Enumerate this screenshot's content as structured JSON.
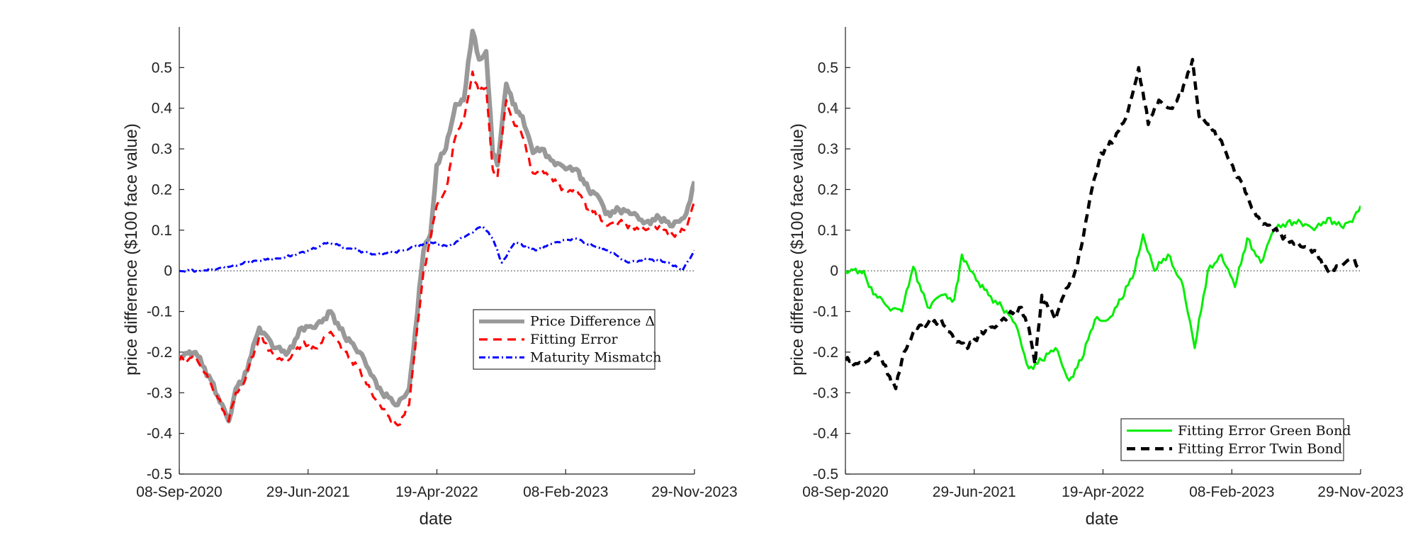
{
  "chart_data": [
    {
      "type": "line",
      "title": "",
      "xlabel": "date",
      "ylabel": "price difference ($100 face value)",
      "x_ticks": [
        "08-Sep-2020",
        "29-Jun-2021",
        "19-Apr-2022",
        "08-Feb-2023",
        "29-Nov-2023"
      ],
      "y_ticks": [
        "-0.5",
        "-0.4",
        "-0.3",
        "-0.2",
        "-0.1",
        "0",
        "0.1",
        "0.2",
        "0.3",
        "0.4",
        "0.5"
      ],
      "xlim": [
        "2020-09-08",
        "2023-11-29"
      ],
      "ylim": [
        -0.5,
        0.6
      ],
      "grid": false,
      "zero_line": true,
      "legend": "center-right",
      "series": [
        {
          "name": "Price Difference Δ",
          "color": "#999999",
          "style": "solid-thick",
          "x": [
            "2020-09-08",
            "2020-10-15",
            "2020-11-20",
            "2020-12-30",
            "2021-01-15",
            "2021-02-01",
            "2021-03-10",
            "2021-04-15",
            "2021-05-15",
            "2021-06-15",
            "2021-07-15",
            "2021-08-20",
            "2021-09-20",
            "2021-10-25",
            "2021-11-25",
            "2021-12-15",
            "2022-01-20",
            "2022-02-15",
            "2022-03-01",
            "2022-03-20",
            "2022-04-05",
            "2022-04-19",
            "2022-05-10",
            "2022-06-01",
            "2022-06-20",
            "2022-07-10",
            "2022-07-25",
            "2022-08-10",
            "2022-08-25",
            "2022-09-05",
            "2022-09-25",
            "2022-10-10",
            "2022-11-01",
            "2022-11-25",
            "2022-12-15",
            "2023-01-10",
            "2023-02-08",
            "2023-03-05",
            "2023-04-01",
            "2023-04-25",
            "2023-05-10",
            "2023-06-10",
            "2023-07-10",
            "2023-08-10",
            "2023-09-10",
            "2023-10-10",
            "2023-11-10",
            "2023-11-29"
          ],
          "values": [
            -0.21,
            -0.2,
            -0.27,
            -0.37,
            -0.29,
            -0.27,
            -0.14,
            -0.19,
            -0.2,
            -0.14,
            -0.14,
            -0.1,
            -0.16,
            -0.2,
            -0.26,
            -0.3,
            -0.33,
            -0.29,
            -0.15,
            0.05,
            0.09,
            0.26,
            0.3,
            0.41,
            0.42,
            0.59,
            0.52,
            0.54,
            0.29,
            0.26,
            0.46,
            0.41,
            0.38,
            0.29,
            0.3,
            0.27,
            0.25,
            0.25,
            0.2,
            0.18,
            0.14,
            0.15,
            0.14,
            0.12,
            0.13,
            0.11,
            0.14,
            0.22
          ]
        },
        {
          "name": "Fitting Error",
          "color": "#ff0000",
          "style": "dashed",
          "x": [
            "2020-09-08",
            "2020-10-15",
            "2020-11-20",
            "2020-12-30",
            "2021-01-15",
            "2021-02-01",
            "2021-03-10",
            "2021-04-15",
            "2021-05-15",
            "2021-06-15",
            "2021-07-15",
            "2021-08-20",
            "2021-09-20",
            "2021-10-25",
            "2021-11-25",
            "2021-12-15",
            "2022-01-20",
            "2022-02-15",
            "2022-03-01",
            "2022-03-20",
            "2022-04-05",
            "2022-04-19",
            "2022-05-10",
            "2022-06-01",
            "2022-06-20",
            "2022-07-10",
            "2022-07-25",
            "2022-08-10",
            "2022-08-25",
            "2022-09-05",
            "2022-09-25",
            "2022-10-10",
            "2022-11-01",
            "2022-11-25",
            "2022-12-15",
            "2023-01-10",
            "2023-02-08",
            "2023-03-05",
            "2023-04-01",
            "2023-04-25",
            "2023-05-10",
            "2023-06-10",
            "2023-07-10",
            "2023-08-10",
            "2023-09-10",
            "2023-10-10",
            "2023-11-10",
            "2023-11-29"
          ],
          "values": [
            -0.22,
            -0.21,
            -0.28,
            -0.37,
            -0.3,
            -0.28,
            -0.16,
            -0.21,
            -0.22,
            -0.18,
            -0.19,
            -0.15,
            -0.2,
            -0.24,
            -0.31,
            -0.34,
            -0.38,
            -0.33,
            -0.19,
            0.0,
            0.08,
            0.16,
            0.2,
            0.33,
            0.37,
            0.49,
            0.44,
            0.45,
            0.25,
            0.23,
            0.42,
            0.37,
            0.33,
            0.24,
            0.25,
            0.22,
            0.2,
            0.2,
            0.15,
            0.14,
            0.11,
            0.12,
            0.11,
            0.1,
            0.11,
            0.09,
            0.1,
            0.17
          ]
        },
        {
          "name": "Maturity Mismatch",
          "color": "#0000ff",
          "style": "dash-dot",
          "x": [
            "2020-09-08",
            "2020-11-01",
            "2021-01-01",
            "2021-03-01",
            "2021-05-01",
            "2021-07-01",
            "2021-08-15",
            "2021-10-01",
            "2021-12-01",
            "2022-02-01",
            "2022-04-01",
            "2022-05-15",
            "2022-07-01",
            "2022-08-01",
            "2022-08-25",
            "2022-09-15",
            "2022-10-15",
            "2022-12-01",
            "2023-01-15",
            "2023-03-01",
            "2023-04-15",
            "2023-05-15",
            "2023-07-01",
            "2023-08-15",
            "2023-10-01",
            "2023-11-01",
            "2023-11-29"
          ],
          "values": [
            0.0,
            0.0,
            0.01,
            0.025,
            0.03,
            0.05,
            0.07,
            0.055,
            0.04,
            0.05,
            0.07,
            0.06,
            0.09,
            0.11,
            0.08,
            0.02,
            0.07,
            0.05,
            0.07,
            0.08,
            0.06,
            0.05,
            0.02,
            0.03,
            0.02,
            0.0,
            0.05
          ]
        }
      ]
    },
    {
      "type": "line",
      "title": "",
      "xlabel": "date",
      "ylabel": "price difference ($100 face value)",
      "x_ticks": [
        "08-Sep-2020",
        "29-Jun-2021",
        "19-Apr-2022",
        "08-Feb-2023",
        "29-Nov-2023"
      ],
      "y_ticks": [
        "-0.5",
        "-0.4",
        "-0.3",
        "-0.2",
        "-0.1",
        "0",
        "0.1",
        "0.2",
        "0.3",
        "0.4",
        "0.5"
      ],
      "xlim": [
        "2020-09-08",
        "2023-11-29"
      ],
      "ylim": [
        -0.5,
        0.6
      ],
      "grid": false,
      "zero_line": true,
      "legend": "bottom-right",
      "series": [
        {
          "name": "Fitting Error Green Bond",
          "color": "#00ee00",
          "style": "solid",
          "x": [
            "2020-09-08",
            "2020-10-20",
            "2020-11-01",
            "2020-12-15",
            "2021-01-15",
            "2021-02-10",
            "2021-03-15",
            "2021-04-15",
            "2021-05-15",
            "2021-06-01",
            "2021-06-20",
            "2021-08-01",
            "2021-09-01",
            "2021-10-01",
            "2021-11-01",
            "2021-12-01",
            "2022-01-01",
            "2022-02-01",
            "2022-03-01",
            "2022-04-01",
            "2022-05-01",
            "2022-06-01",
            "2022-07-01",
            "2022-07-20",
            "2022-08-15",
            "2022-09-15",
            "2022-10-20",
            "2022-11-15",
            "2022-12-15",
            "2023-01-15",
            "2023-02-15",
            "2023-03-15",
            "2023-04-15",
            "2023-05-15",
            "2023-06-15",
            "2023-07-15",
            "2023-08-15",
            "2023-09-15",
            "2023-10-15",
            "2023-11-10",
            "2023-11-29"
          ],
          "values": [
            0.0,
            0.0,
            -0.04,
            -0.09,
            -0.1,
            0.01,
            -0.09,
            -0.06,
            -0.07,
            0.04,
            0.0,
            -0.06,
            -0.09,
            -0.13,
            -0.24,
            -0.22,
            -0.19,
            -0.27,
            -0.22,
            -0.12,
            -0.12,
            -0.07,
            0.0,
            0.09,
            0.0,
            0.04,
            -0.04,
            -0.19,
            0.0,
            0.04,
            -0.04,
            0.08,
            0.02,
            0.1,
            0.12,
            0.12,
            0.1,
            0.13,
            0.11,
            0.12,
            0.16
          ]
        },
        {
          "name": "Fitting Error Twin Bond",
          "color": "#000000",
          "style": "dashed-thick",
          "x": [
            "2020-09-08",
            "2020-10-15",
            "2020-11-20",
            "2021-01-01",
            "2021-01-20",
            "2021-02-15",
            "2021-03-15",
            "2021-04-15",
            "2021-05-15",
            "2021-06-15",
            "2021-07-15",
            "2021-08-15",
            "2021-09-15",
            "2021-10-15",
            "2021-11-01",
            "2021-11-15",
            "2021-12-01",
            "2022-01-01",
            "2022-01-20",
            "2022-02-15",
            "2022-03-05",
            "2022-03-25",
            "2022-04-15",
            "2022-05-15",
            "2022-06-15",
            "2022-07-10",
            "2022-08-01",
            "2022-08-25",
            "2022-09-20",
            "2022-10-15",
            "2022-11-10",
            "2022-11-25",
            "2022-12-15",
            "2023-01-15",
            "2023-02-15",
            "2023-03-01",
            "2023-03-20",
            "2023-04-15",
            "2023-05-15",
            "2023-06-15",
            "2023-07-15",
            "2023-08-15",
            "2023-09-15",
            "2023-10-15",
            "2023-11-10",
            "2023-11-29"
          ],
          "values": [
            -0.22,
            -0.23,
            -0.2,
            -0.29,
            -0.2,
            -0.14,
            -0.13,
            -0.12,
            -0.17,
            -0.19,
            -0.15,
            -0.14,
            -0.11,
            -0.09,
            -0.14,
            -0.23,
            -0.06,
            -0.12,
            -0.06,
            0.0,
            0.08,
            0.2,
            0.29,
            0.32,
            0.39,
            0.5,
            0.36,
            0.42,
            0.4,
            0.43,
            0.52,
            0.38,
            0.36,
            0.32,
            0.24,
            0.22,
            0.17,
            0.12,
            0.1,
            0.08,
            0.06,
            0.05,
            0.0,
            0.01,
            0.03,
            0.0
          ]
        }
      ]
    }
  ]
}
